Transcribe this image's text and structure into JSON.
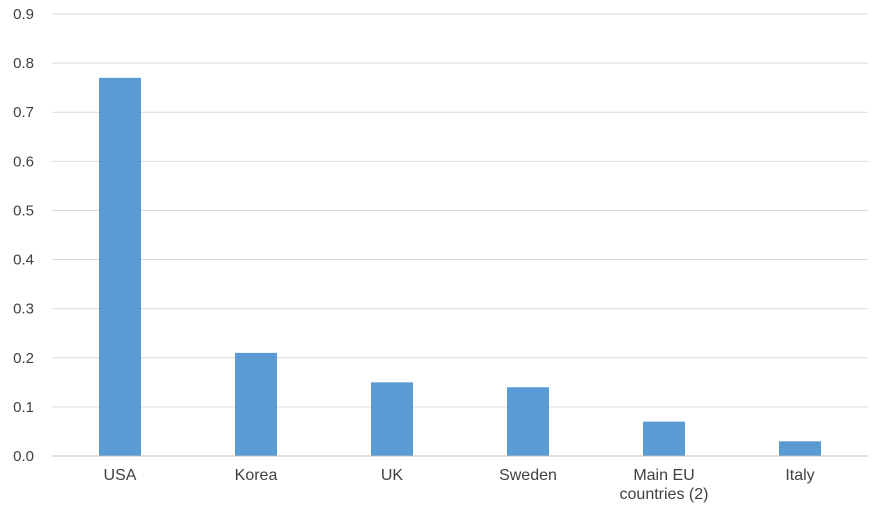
{
  "chart_data": {
    "type": "bar",
    "title": "",
    "xlabel": "",
    "ylabel": "",
    "categories": [
      [
        "USA"
      ],
      [
        "Korea"
      ],
      [
        "UK"
      ],
      [
        "Sweden"
      ],
      [
        "Main EU",
        "countries (2)"
      ],
      [
        "Italy"
      ]
    ],
    "values": [
      0.77,
      0.21,
      0.15,
      0.14,
      0.07,
      0.03
    ],
    "ylim": [
      0,
      0.9
    ],
    "yticks": [
      "0.0",
      "0.1",
      "0.2",
      "0.3",
      "0.4",
      "0.5",
      "0.6",
      "0.7",
      "0.8",
      "0.9"
    ],
    "grid": true,
    "legend": "none",
    "bar_color": "#5b9bd5"
  }
}
